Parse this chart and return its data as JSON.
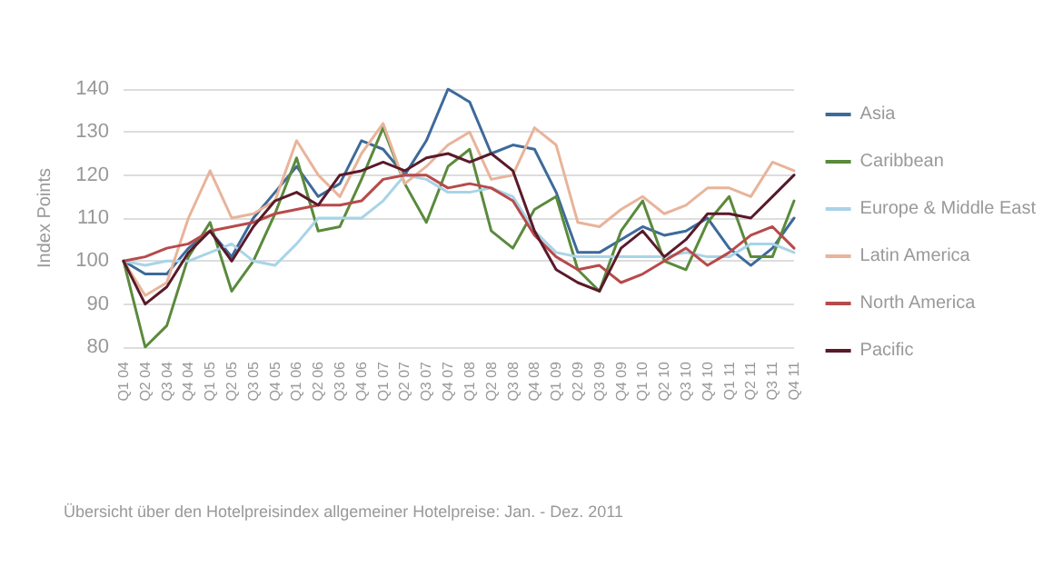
{
  "chart_data": {
    "type": "line",
    "ylabel": "Index Points",
    "annotations": [
      "Übersicht über den Hotelpreisindex allgemeiner Hotelpreise: Jan. - Dez. 2011"
    ],
    "categories": [
      "Q1 04",
      "Q2 04",
      "Q3 04",
      "Q4 04",
      "Q1 05",
      "Q2 05",
      "Q3 05",
      "Q4 05",
      "Q1 06",
      "Q2 06",
      "Q3 06",
      "Q4 06",
      "Q1 07",
      "Q2 07",
      "Q3 07",
      "Q4 07",
      "Q1 08",
      "Q2 08",
      "Q3 08",
      "Q4 08",
      "Q1 09",
      "Q2 09",
      "Q3 09",
      "Q4 09",
      "Q1 10",
      "Q2 10",
      "Q3 10",
      "Q4 10",
      "Q1 11",
      "Q2 11",
      "Q3 11",
      "Q4 11"
    ],
    "series": [
      {
        "name": "Asia",
        "color": "#3d6a9a",
        "values": [
          100,
          97,
          97,
          103,
          107,
          101,
          110,
          116,
          122,
          115,
          118,
          128,
          126,
          120,
          128,
          140,
          137,
          125,
          127,
          126,
          116,
          102,
          102,
          105,
          108,
          106,
          107,
          110,
          103,
          99,
          103,
          110
        ]
      },
      {
        "name": "Caribbean",
        "color": "#5a8a3c",
        "values": [
          100,
          80,
          85,
          101,
          109,
          93,
          100,
          111,
          124,
          107,
          108,
          119,
          131,
          118,
          109,
          122,
          126,
          107,
          103,
          112,
          115,
          98,
          93,
          107,
          114,
          100,
          98,
          109,
          115,
          101,
          101,
          114
        ]
      },
      {
        "name": "Europe & Middle East",
        "color": "#a8d4e8",
        "values": [
          100,
          99,
          100,
          100,
          102,
          104,
          100,
          99,
          104,
          110,
          110,
          110,
          114,
          120,
          119,
          116,
          116,
          117,
          115,
          107,
          102,
          101,
          101,
          101,
          101,
          101,
          102,
          101,
          101,
          104,
          104,
          102
        ]
      },
      {
        "name": "Latin America",
        "color": "#e8b49a",
        "values": [
          100,
          92,
          95,
          110,
          121,
          110,
          111,
          114,
          128,
          120,
          115,
          125,
          132,
          118,
          122,
          127,
          130,
          119,
          120,
          131,
          127,
          109,
          108,
          112,
          115,
          111,
          113,
          117,
          117,
          115,
          123,
          121
        ]
      },
      {
        "name": "North America",
        "color": "#b84a4a",
        "values": [
          100,
          101,
          103,
          104,
          107,
          108,
          109,
          111,
          112,
          113,
          113,
          114,
          119,
          120,
          120,
          117,
          118,
          117,
          114,
          106,
          101,
          98,
          99,
          95,
          97,
          100,
          103,
          99,
          102,
          106,
          108,
          103
        ]
      },
      {
        "name": "Pacific",
        "color": "#5a1a2a",
        "values": [
          100,
          90,
          94,
          102,
          107,
          100,
          108,
          114,
          116,
          113,
          120,
          121,
          123,
          121,
          124,
          125,
          123,
          125,
          121,
          107,
          98,
          95,
          93,
          103,
          107,
          101,
          105,
          111,
          111,
          110,
          115,
          120
        ]
      }
    ],
    "ylim": [
      80,
      140
    ],
    "yticks": [
      80,
      90,
      100,
      110,
      120,
      130,
      140
    ],
    "grid": "y",
    "legend": "right",
    "marker": "none",
    "line_style": "solid"
  }
}
